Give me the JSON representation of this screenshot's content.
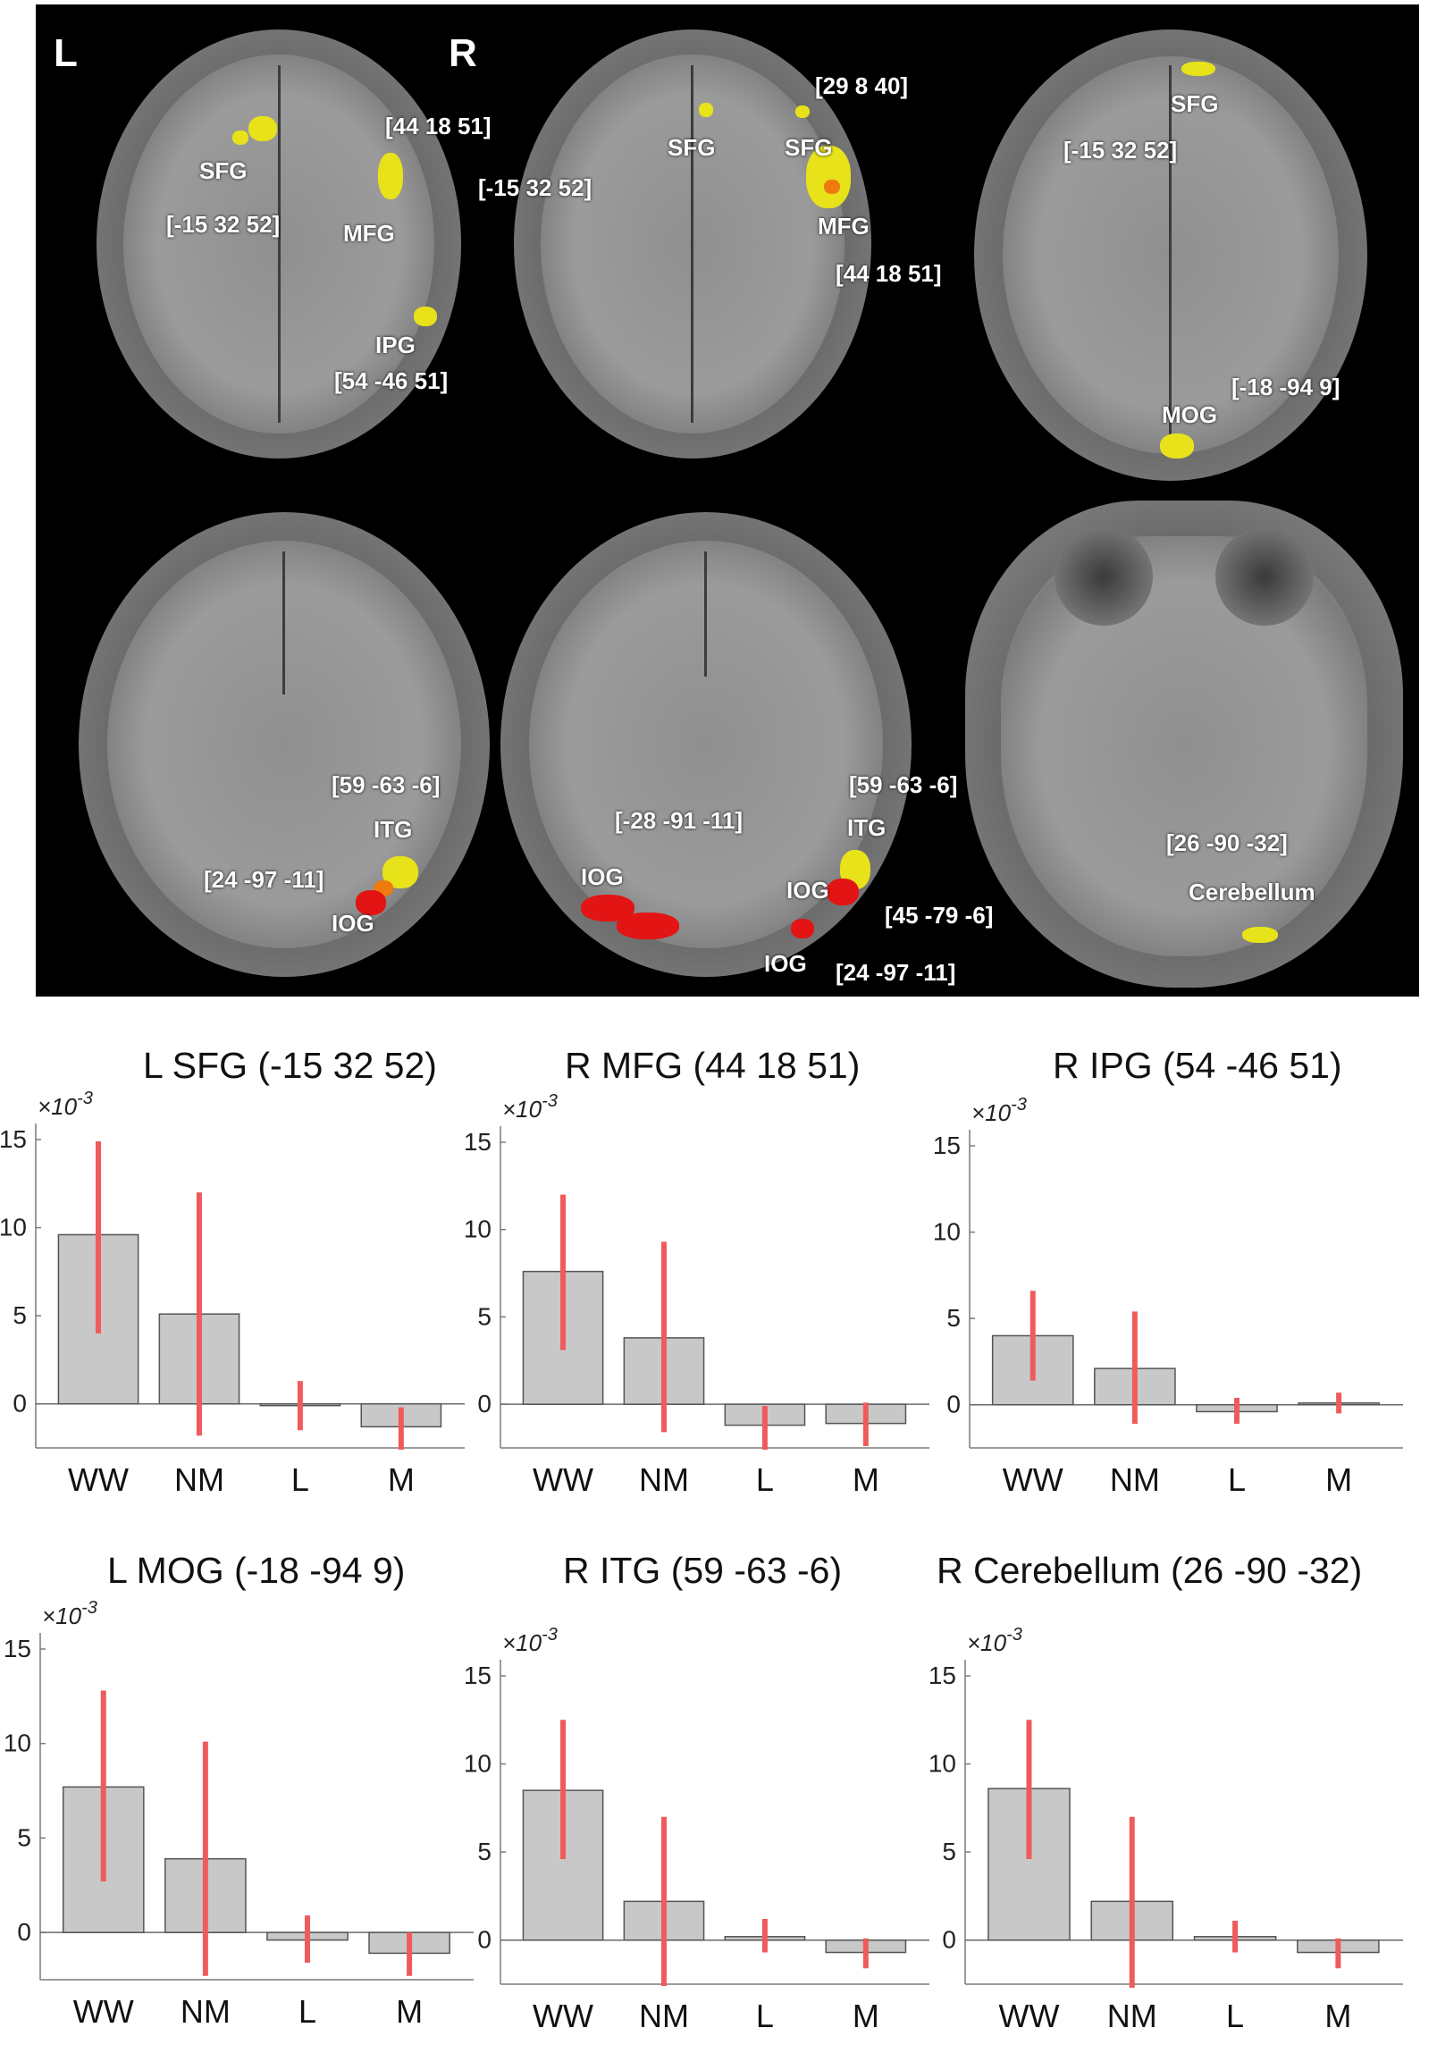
{
  "brain_figure": {
    "orientation_left": "L",
    "orientation_right": "R",
    "slices": [
      {
        "labels": [
          "SFG",
          "[-15 32 52]",
          "[44 18 51]",
          "MFG",
          "IPG",
          "[54 -46 51]"
        ]
      },
      {
        "labels": [
          "[29 8 40]",
          "SFG",
          "SFG",
          "[-15 32 52]",
          "MFG",
          "[44 18 51]"
        ]
      },
      {
        "labels": [
          "SFG",
          "[-15 32 52]",
          "[-18 -94 9]",
          "MOG"
        ]
      },
      {
        "labels": [
          "[59 -63 -6]",
          "ITG",
          "[24 -97 -11]",
          "IOG"
        ]
      },
      {
        "labels": [
          "[59 -63 -6]",
          "[-28 -91 -11]",
          "ITG",
          "IOG",
          "IOG",
          "[45 -79 -6]",
          "IOG",
          "[24 -97 -11]"
        ]
      },
      {
        "labels": [
          "[26 -90 -32]",
          "Cerebellum"
        ]
      }
    ]
  },
  "chart_data": [
    {
      "type": "bar",
      "title": "L SFG (-15 32 52)",
      "multiplier": "×10",
      "exponent": "-3",
      "categories": [
        "WW",
        "NM",
        "L",
        "M"
      ],
      "values": [
        9.6,
        5.1,
        -0.1,
        -1.3
      ],
      "error_low": [
        4.0,
        -1.8,
        -1.5,
        -2.6
      ],
      "error_high": [
        14.9,
        12.0,
        1.3,
        -0.2
      ],
      "yticks": [
        "15",
        "10",
        "5",
        "0"
      ],
      "ylim": [
        -2.5,
        15
      ]
    },
    {
      "type": "bar",
      "title": "R MFG (44 18 51)",
      "multiplier": "×10",
      "exponent": "-3",
      "categories": [
        "WW",
        "NM",
        "L",
        "M"
      ],
      "values": [
        7.6,
        3.8,
        -1.2,
        -1.1
      ],
      "error_low": [
        3.1,
        -1.6,
        -2.6,
        -2.4
      ],
      "error_high": [
        12.0,
        9.3,
        -0.1,
        0.1
      ],
      "yticks": [
        "15",
        "10",
        "5",
        "0"
      ],
      "ylim": [
        -2.5,
        15
      ]
    },
    {
      "type": "bar",
      "title": "R IPG (54 -46 51)",
      "multiplier": "×10",
      "exponent": "-3",
      "categories": [
        "WW",
        "NM",
        "L",
        "M"
      ],
      "values": [
        4.0,
        2.1,
        -0.4,
        0.1
      ],
      "error_low": [
        1.4,
        -1.1,
        -1.1,
        -0.5
      ],
      "error_high": [
        6.6,
        5.4,
        0.4,
        0.7
      ],
      "yticks": [
        "15",
        "10",
        "5",
        "0"
      ],
      "ylim": [
        -2.5,
        15
      ]
    },
    {
      "type": "bar",
      "title": "L MOG (-18 -94 9)",
      "multiplier": "×10",
      "exponent": "-3",
      "categories": [
        "WW",
        "NM",
        "L",
        "M"
      ],
      "values": [
        7.7,
        3.9,
        -0.4,
        -1.1
      ],
      "error_low": [
        2.7,
        -2.3,
        -1.6,
        -2.3
      ],
      "error_high": [
        12.8,
        10.1,
        0.9,
        0.0
      ],
      "yticks": [
        "15",
        "10",
        "5",
        "0"
      ],
      "ylim": [
        -2.5,
        15
      ]
    },
    {
      "type": "bar",
      "title": "R ITG (59 -63 -6)",
      "multiplier": "×10",
      "exponent": "-3",
      "categories": [
        "WW",
        "NM",
        "L",
        "M"
      ],
      "values": [
        8.5,
        2.2,
        0.2,
        -0.7
      ],
      "error_low": [
        4.6,
        -2.6,
        -0.7,
        -1.6
      ],
      "error_high": [
        12.5,
        7.0,
        1.2,
        0.1
      ],
      "yticks": [
        "15",
        "10",
        "5",
        "0"
      ],
      "ylim": [
        -2.5,
        15
      ]
    },
    {
      "type": "bar",
      "title": "R Cerebellum (26 -90 -32)",
      "multiplier": "×10",
      "exponent": "-3",
      "categories": [
        "WW",
        "NM",
        "L",
        "M"
      ],
      "values": [
        8.6,
        2.2,
        0.2,
        -0.7
      ],
      "error_low": [
        4.6,
        -2.7,
        -0.7,
        -1.6
      ],
      "error_high": [
        12.5,
        7.0,
        1.1,
        0.1
      ],
      "yticks": [
        "15",
        "10",
        "5",
        "0"
      ],
      "ylim": [
        -2.5,
        15
      ]
    }
  ]
}
